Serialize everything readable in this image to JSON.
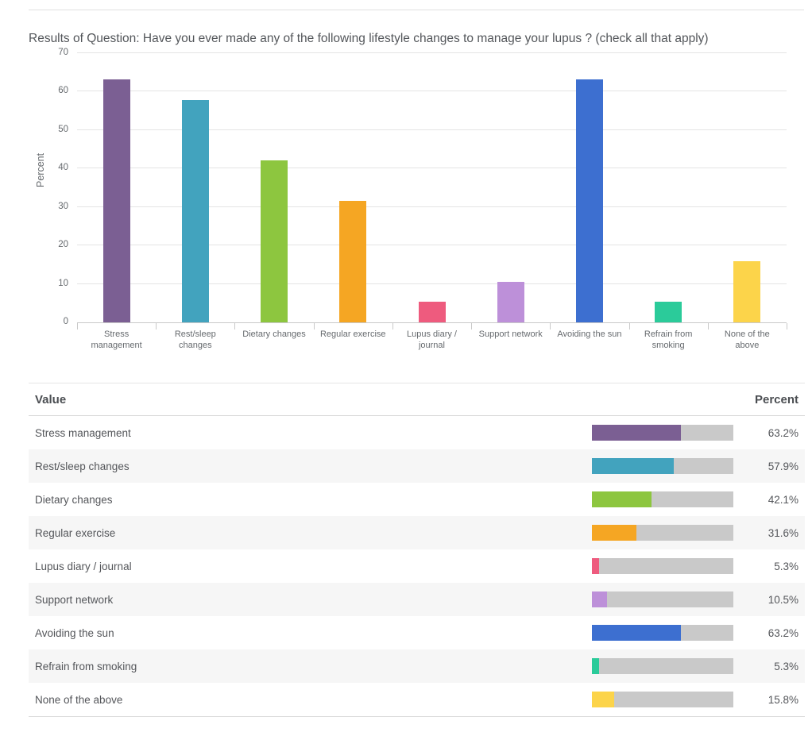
{
  "page": {
    "title": "Results of Question: Have you ever made any of the following lifestyle changes to manage your lupus ? (check all that apply)"
  },
  "chart_data": {
    "type": "bar",
    "title": "",
    "xlabel": "",
    "ylabel": "Percent",
    "ylim": [
      0,
      70
    ],
    "yticks": [
      0,
      10,
      20,
      30,
      40,
      50,
      60,
      70
    ],
    "grid": true,
    "legend": "none",
    "categories": [
      "Stress management",
      "Rest/sleep changes",
      "Dietary changes",
      "Regular exercise",
      "Lupus diary / journal",
      "Support network",
      "Avoiding the sun",
      "Refrain from smoking",
      "None of the above"
    ],
    "values": [
      63.2,
      57.9,
      42.1,
      31.6,
      5.3,
      10.5,
      63.2,
      5.3,
      15.8
    ],
    "bar_colors": [
      "#7b5f93",
      "#42a3be",
      "#8dc63f",
      "#f5a623",
      "#ee5b7e",
      "#bd90d9",
      "#3d6fd0",
      "#2bcb9a",
      "#fcd44a"
    ]
  },
  "table": {
    "headers": {
      "value": "Value",
      "percent": "Percent"
    },
    "track_color": "#c9c9c9",
    "rows": [
      {
        "label": "Stress management",
        "percent": 63.2,
        "percent_label": "63.2%",
        "color": "#7b5f93"
      },
      {
        "label": "Rest/sleep changes",
        "percent": 57.9,
        "percent_label": "57.9%",
        "color": "#42a3be"
      },
      {
        "label": "Dietary changes",
        "percent": 42.1,
        "percent_label": "42.1%",
        "color": "#8dc63f"
      },
      {
        "label": "Regular exercise",
        "percent": 31.6,
        "percent_label": "31.6%",
        "color": "#f5a623"
      },
      {
        "label": "Lupus diary / journal",
        "percent": 5.3,
        "percent_label": "5.3%",
        "color": "#ee5b7e"
      },
      {
        "label": "Support network",
        "percent": 10.5,
        "percent_label": "10.5%",
        "color": "#bd90d9"
      },
      {
        "label": "Avoiding the sun",
        "percent": 63.2,
        "percent_label": "63.2%",
        "color": "#3d6fd0"
      },
      {
        "label": "Refrain from smoking",
        "percent": 5.3,
        "percent_label": "5.3%",
        "color": "#2bcb9a"
      },
      {
        "label": "None of the above",
        "percent": 15.8,
        "percent_label": "15.8%",
        "color": "#fcd44a"
      }
    ]
  }
}
